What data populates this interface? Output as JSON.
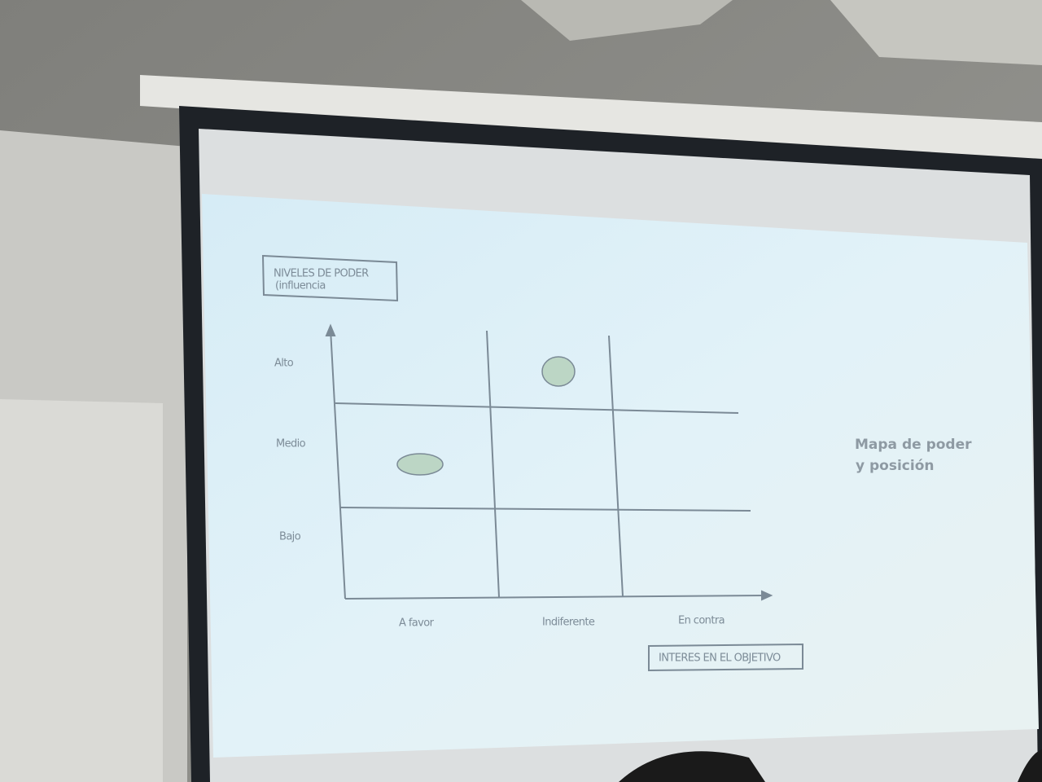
{
  "slide": {
    "y_axis_box": {
      "lines": [
        "NIVELES DE PODER",
        "(influencia"
      ]
    },
    "y_levels": [
      "Alto",
      "Medio",
      "Bajo"
    ],
    "x_levels": [
      "A favor",
      "Indiferente",
      "En contra"
    ],
    "x_axis_box": "INTERES EN EL OBJETIVO",
    "side_title": {
      "lines": [
        "Mapa de poder",
        "y posición"
      ]
    }
  }
}
